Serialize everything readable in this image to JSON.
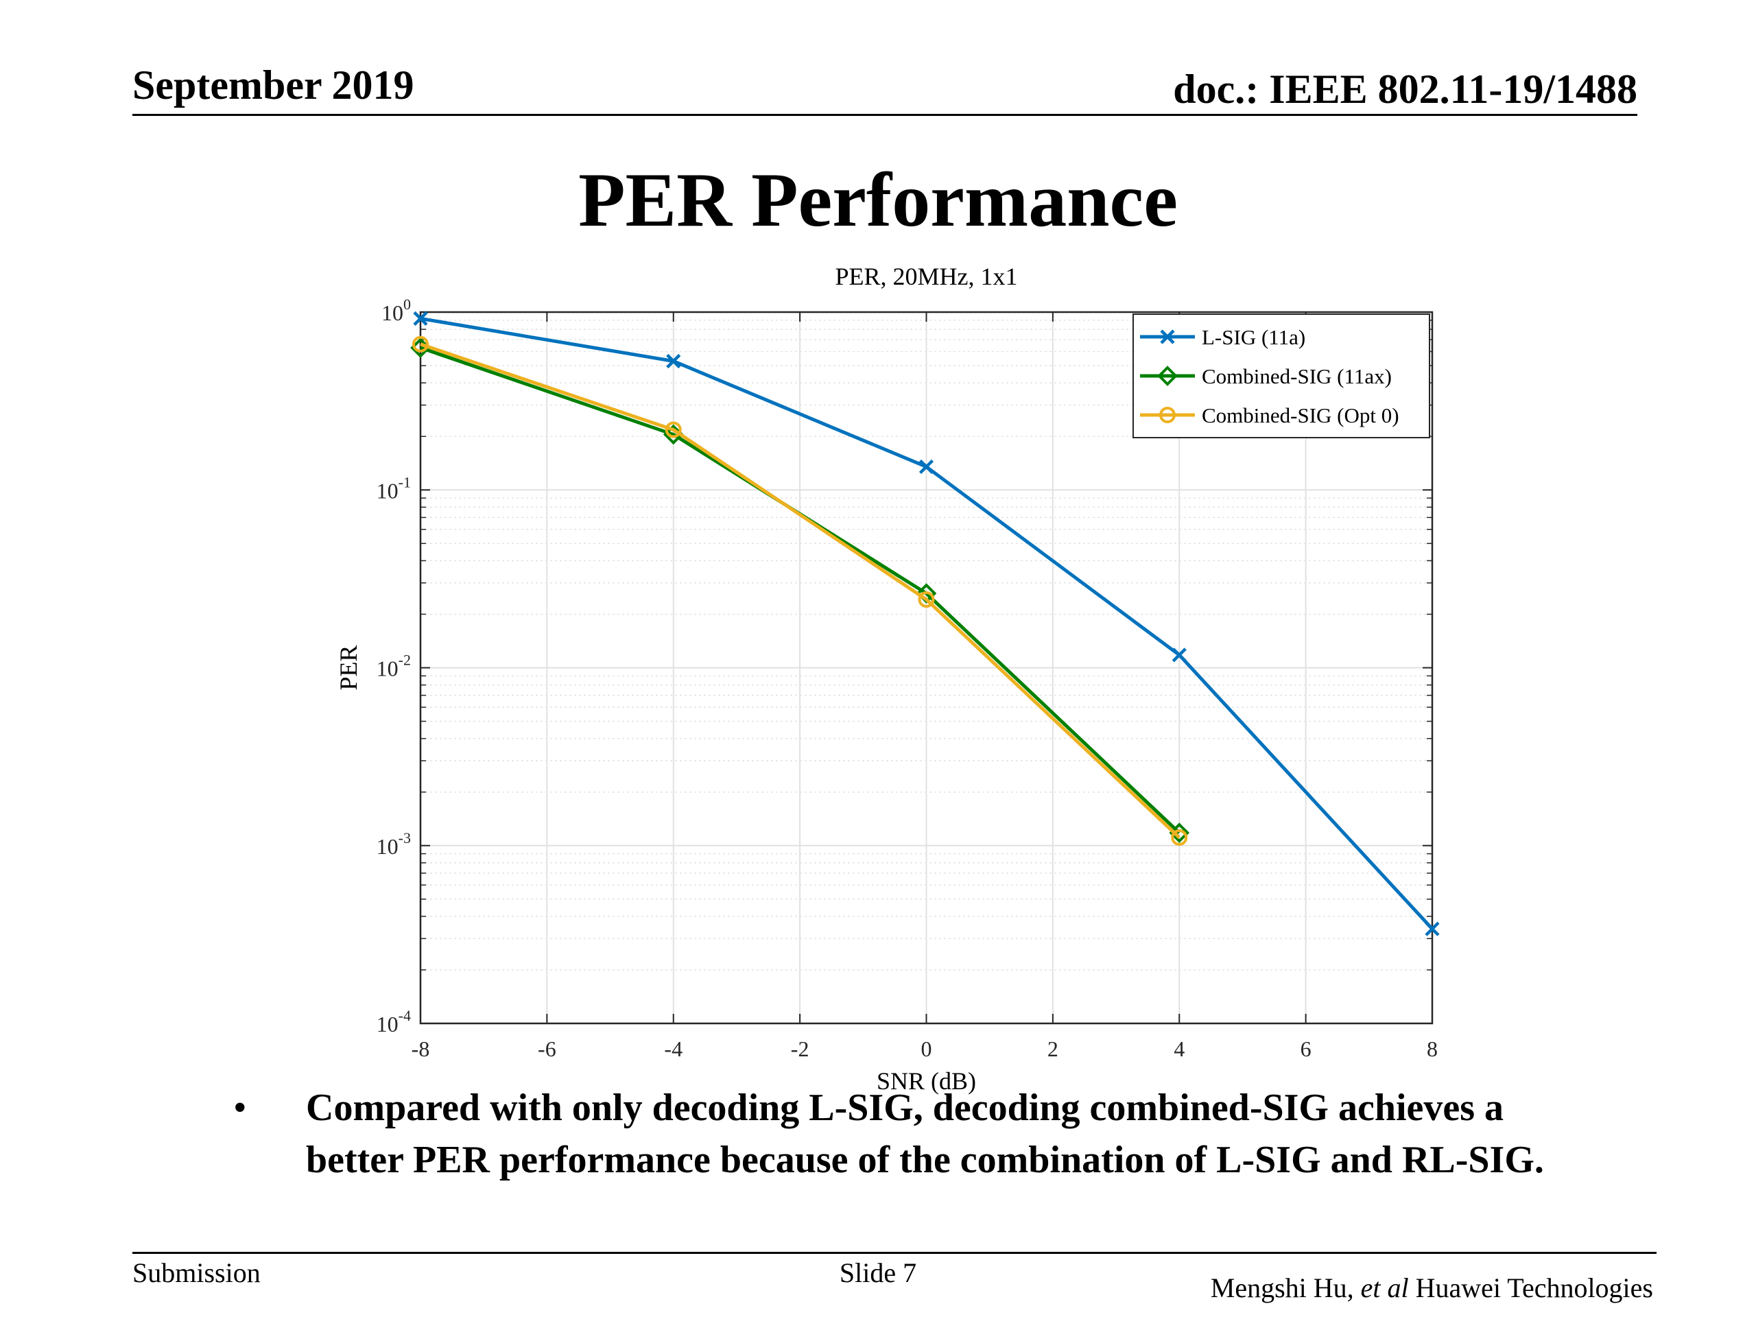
{
  "header": {
    "date": "September 2019",
    "doc": "doc.: IEEE 802.11-19/1488"
  },
  "slide_title": "PER Performance",
  "chart_data": {
    "type": "line",
    "title": "PER, 20MHz, 1x1",
    "xlabel": "SNR (dB)",
    "ylabel": "PER",
    "xlim": [
      -8,
      8
    ],
    "ylim": [
      0.0001,
      1
    ],
    "yscale": "log",
    "xticks": [
      "-8",
      "-6",
      "-4",
      "-2",
      "0",
      "2",
      "4",
      "6",
      "8"
    ],
    "yticks": [
      {
        "base": "10",
        "exp": "-4"
      },
      {
        "base": "10",
        "exp": "-3"
      },
      {
        "base": "10",
        "exp": "-2"
      },
      {
        "base": "10",
        "exp": "-1"
      },
      {
        "base": "10",
        "exp": "0"
      }
    ],
    "grid": true,
    "legend_position": "top-right",
    "series": [
      {
        "name": "L-SIG (11a)",
        "color": "#0072BD",
        "marker": "x",
        "x": [
          -8,
          -4,
          0,
          4,
          8
        ],
        "y": [
          0.92,
          0.53,
          0.135,
          0.0118,
          0.00034
        ]
      },
      {
        "name": "Combined-SIG (11ax)",
        "color": "#008000",
        "marker": "diamond",
        "x": [
          -8,
          -4,
          0,
          4
        ],
        "y": [
          0.63,
          0.205,
          0.0262,
          0.00118
        ]
      },
      {
        "name": "Combined-SIG (Opt 0)",
        "color": "#EDB120",
        "marker": "circle",
        "x": [
          -8,
          -4,
          0,
          4
        ],
        "y": [
          0.66,
          0.218,
          0.0242,
          0.00111
        ]
      }
    ]
  },
  "bullet": {
    "symbol": "•",
    "text": "Compared with only decoding L-SIG, decoding combined-SIG achieves a better PER performance because of the combination of L-SIG and RL-SIG."
  },
  "footer": {
    "left": "Submission",
    "center": "Slide 7",
    "right_author": "Mengshi Hu,",
    "right_etal": "et al",
    "right_org": "Huawei Technologies"
  }
}
